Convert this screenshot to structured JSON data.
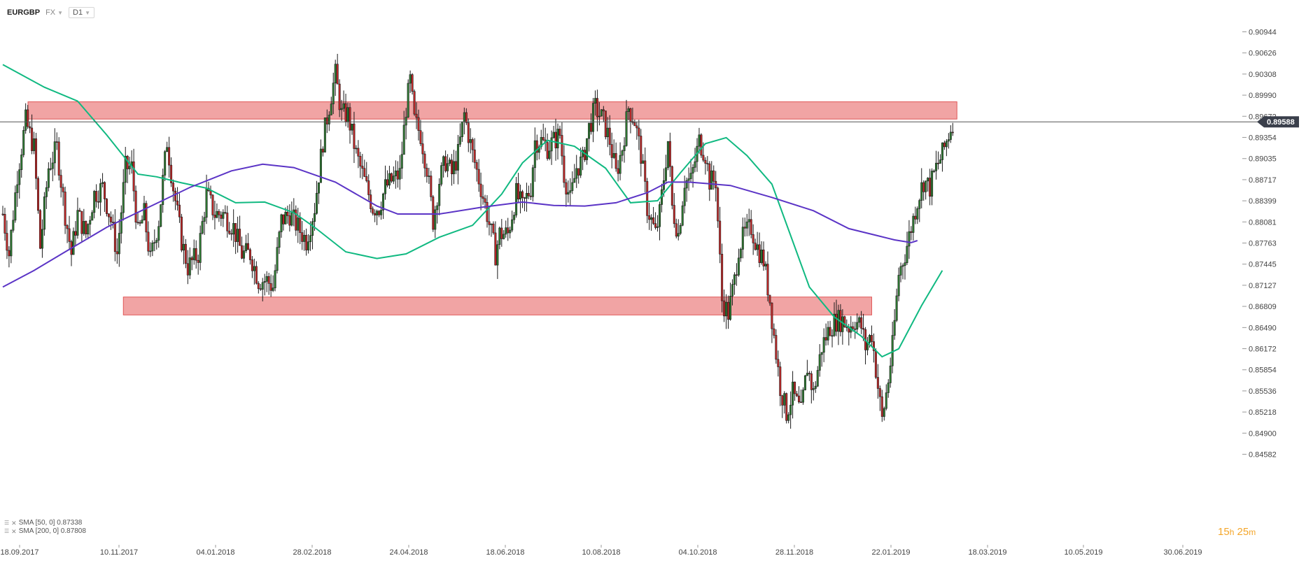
{
  "toolbar": {
    "symbol": "EURGBP",
    "market": "FX",
    "timeframe": "D1",
    "caret_icon": "chevron-down-icon"
  },
  "chart_data": {
    "type": "candlestick",
    "symbol": "EURGBP",
    "timeframe": "D1",
    "ylim": [
      0.8458,
      0.911
    ],
    "y_ticks": [
      "0.90944",
      "0.90626",
      "0.90308",
      "0.89990",
      "0.89672",
      "0.89354",
      "0.89035",
      "0.88717",
      "0.88399",
      "0.88081",
      "0.87763",
      "0.87445",
      "0.87127",
      "0.86809",
      "0.86490",
      "0.86172",
      "0.85854",
      "0.85536",
      "0.85218",
      "0.84900",
      "0.84582"
    ],
    "x_ticks": [
      "18.09.2017",
      "10.11.2017",
      "04.01.2018",
      "28.02.2018",
      "24.04.2018",
      "18.06.2018",
      "10.08.2018",
      "04.10.2018",
      "28.11.2018",
      "22.01.2019",
      "18.03.2019",
      "10.05.2019",
      "30.06.2019"
    ],
    "current_price": "0.89588",
    "price_path": [
      [
        0,
        0.882
      ],
      [
        6,
        0.876
      ],
      [
        14,
        0.888
      ],
      [
        22,
        0.896
      ],
      [
        30,
        0.892
      ],
      [
        36,
        0.877
      ],
      [
        44,
        0.889
      ],
      [
        52,
        0.892
      ],
      [
        60,
        0.882
      ],
      [
        66,
        0.876
      ],
      [
        72,
        0.882
      ],
      [
        80,
        0.879
      ],
      [
        88,
        0.885
      ],
      [
        96,
        0.886
      ],
      [
        104,
        0.881
      ],
      [
        110,
        0.876
      ],
      [
        118,
        0.889
      ],
      [
        124,
        0.889
      ],
      [
        130,
        0.879
      ],
      [
        136,
        0.882
      ],
      [
        142,
        0.875
      ],
      [
        150,
        0.881
      ],
      [
        158,
        0.893
      ],
      [
        164,
        0.886
      ],
      [
        172,
        0.878
      ],
      [
        178,
        0.874
      ],
      [
        188,
        0.876
      ],
      [
        196,
        0.885
      ],
      [
        204,
        0.882
      ],
      [
        212,
        0.882
      ],
      [
        222,
        0.88
      ],
      [
        230,
        0.876
      ],
      [
        238,
        0.876
      ],
      [
        246,
        0.872
      ],
      [
        254,
        0.872
      ],
      [
        260,
        0.871
      ],
      [
        268,
        0.881
      ],
      [
        276,
        0.882
      ],
      [
        284,
        0.88
      ],
      [
        292,
        0.878
      ],
      [
        300,
        0.883
      ],
      [
        308,
        0.893
      ],
      [
        316,
        0.9
      ],
      [
        320,
        0.903
      ],
      [
        326,
        0.897
      ],
      [
        332,
        0.897
      ],
      [
        340,
        0.891
      ],
      [
        348,
        0.887
      ],
      [
        356,
        0.883
      ],
      [
        362,
        0.883
      ],
      [
        368,
        0.886
      ],
      [
        374,
        0.887
      ],
      [
        382,
        0.888
      ],
      [
        388,
        0.898
      ],
      [
        392,
        0.902
      ],
      [
        396,
        0.896
      ],
      [
        402,
        0.894
      ],
      [
        408,
        0.889
      ],
      [
        414,
        0.881
      ],
      [
        420,
        0.887
      ],
      [
        426,
        0.89
      ],
      [
        432,
        0.888
      ],
      [
        438,
        0.891
      ],
      [
        444,
        0.897
      ],
      [
        452,
        0.891
      ],
      [
        460,
        0.886
      ],
      [
        466,
        0.882
      ],
      [
        474,
        0.876
      ],
      [
        478,
        0.879
      ],
      [
        486,
        0.879
      ],
      [
        494,
        0.885
      ],
      [
        500,
        0.883
      ],
      [
        508,
        0.886
      ],
      [
        512,
        0.893
      ],
      [
        518,
        0.893
      ],
      [
        524,
        0.892
      ],
      [
        530,
        0.893
      ],
      [
        536,
        0.894
      ],
      [
        540,
        0.888
      ],
      [
        546,
        0.884
      ],
      [
        552,
        0.889
      ],
      [
        558,
        0.89
      ],
      [
        564,
        0.895
      ],
      [
        570,
        0.898
      ],
      [
        578,
        0.896
      ],
      [
        584,
        0.893
      ],
      [
        590,
        0.888
      ],
      [
        596,
        0.892
      ],
      [
        602,
        0.898
      ],
      [
        608,
        0.896
      ],
      [
        614,
        0.891
      ],
      [
        620,
        0.883
      ],
      [
        628,
        0.879
      ],
      [
        632,
        0.882
      ],
      [
        640,
        0.893
      ],
      [
        644,
        0.883
      ],
      [
        650,
        0.879
      ],
      [
        656,
        0.887
      ],
      [
        662,
        0.887
      ],
      [
        670,
        0.893
      ],
      [
        676,
        0.891
      ],
      [
        680,
        0.887
      ],
      [
        686,
        0.887
      ],
      [
        692,
        0.869
      ],
      [
        698,
        0.867
      ],
      [
        704,
        0.872
      ],
      [
        708,
        0.877
      ],
      [
        714,
        0.879
      ],
      [
        720,
        0.88
      ],
      [
        726,
        0.877
      ],
      [
        732,
        0.875
      ],
      [
        738,
        0.869
      ],
      [
        744,
        0.861
      ],
      [
        748,
        0.856
      ],
      [
        754,
        0.852
      ],
      [
        760,
        0.855
      ],
      [
        768,
        0.852
      ],
      [
        774,
        0.859
      ],
      [
        780,
        0.855
      ],
      [
        788,
        0.862
      ],
      [
        796,
        0.865
      ],
      [
        802,
        0.866
      ],
      [
        808,
        0.866
      ],
      [
        814,
        0.865
      ],
      [
        820,
        0.866
      ],
      [
        826,
        0.865
      ],
      [
        830,
        0.862
      ],
      [
        836,
        0.864
      ],
      [
        842,
        0.856
      ],
      [
        846,
        0.851
      ],
      [
        852,
        0.857
      ],
      [
        856,
        0.862
      ],
      [
        862,
        0.873
      ],
      [
        868,
        0.876
      ],
      [
        874,
        0.88
      ],
      [
        880,
        0.884
      ],
      [
        886,
        0.887
      ],
      [
        892,
        0.886
      ],
      [
        898,
        0.889
      ],
      [
        904,
        0.891
      ],
      [
        910,
        0.894
      ],
      [
        914,
        0.896
      ]
    ],
    "series": [
      {
        "name": "SMA [50, 0]",
        "legend_value": "0.87338",
        "color": "#10b981",
        "points": [
          [
            0,
            0.9045
          ],
          [
            40,
            0.9011
          ],
          [
            72,
            0.899
          ],
          [
            100,
            0.8939
          ],
          [
            130,
            0.888
          ],
          [
            148,
            0.8876
          ],
          [
            172,
            0.8867
          ],
          [
            196,
            0.8859
          ],
          [
            224,
            0.8837
          ],
          [
            252,
            0.8838
          ],
          [
            280,
            0.8822
          ],
          [
            300,
            0.88
          ],
          [
            330,
            0.8763
          ],
          [
            360,
            0.8753
          ],
          [
            388,
            0.876
          ],
          [
            420,
            0.8785
          ],
          [
            452,
            0.8803
          ],
          [
            480,
            0.885
          ],
          [
            500,
            0.8897
          ],
          [
            524,
            0.8931
          ],
          [
            550,
            0.8922
          ],
          [
            580,
            0.8889
          ],
          [
            604,
            0.8837
          ],
          [
            630,
            0.884
          ],
          [
            652,
            0.8882
          ],
          [
            676,
            0.8926
          ],
          [
            696,
            0.8935
          ],
          [
            716,
            0.8908
          ],
          [
            740,
            0.8865
          ],
          [
            760,
            0.8779
          ],
          [
            776,
            0.871
          ],
          [
            800,
            0.8665
          ],
          [
            826,
            0.8636
          ],
          [
            846,
            0.8605
          ],
          [
            862,
            0.8617
          ],
          [
            884,
            0.8682
          ],
          [
            904,
            0.8735
          ]
        ]
      },
      {
        "name": "SMA [200, 0]",
        "legend_value": "0.87808",
        "color": "#5b34c6",
        "points": [
          [
            0,
            0.871
          ],
          [
            30,
            0.8735
          ],
          [
            60,
            0.8763
          ],
          [
            100,
            0.88
          ],
          [
            140,
            0.883
          ],
          [
            180,
            0.886
          ],
          [
            220,
            0.8885
          ],
          [
            250,
            0.8895
          ],
          [
            280,
            0.889
          ],
          [
            320,
            0.8868
          ],
          [
            360,
            0.8832
          ],
          [
            380,
            0.882
          ],
          [
            420,
            0.882
          ],
          [
            460,
            0.883
          ],
          [
            500,
            0.8838
          ],
          [
            530,
            0.8833
          ],
          [
            560,
            0.8832
          ],
          [
            590,
            0.8837
          ],
          [
            620,
            0.8852
          ],
          [
            640,
            0.8868
          ],
          [
            660,
            0.8868
          ],
          [
            700,
            0.8863
          ],
          [
            740,
            0.8845
          ],
          [
            780,
            0.8825
          ],
          [
            814,
            0.8798
          ],
          [
            840,
            0.8788
          ],
          [
            858,
            0.8781
          ],
          [
            874,
            0.8777
          ],
          [
            880,
            0.878
          ]
        ]
      }
    ],
    "zones": [
      {
        "x": [
          0,
          918
        ],
        "y": [
          0.8963,
          0.8989
        ]
      },
      {
        "x": [
          116,
          836
        ],
        "y": [
          0.8668,
          0.8695
        ]
      }
    ]
  },
  "legend": [
    {
      "label": "SMA [50, 0] 0.87338",
      "icon": "list-icon",
      "remove_icon": "close-icon"
    },
    {
      "label": "SMA [200, 0] 0.87808",
      "icon": "list-icon",
      "remove_icon": "close-icon"
    }
  ],
  "timer": {
    "hours": "15",
    "h": "h",
    "minutes": "25",
    "m": "m"
  }
}
